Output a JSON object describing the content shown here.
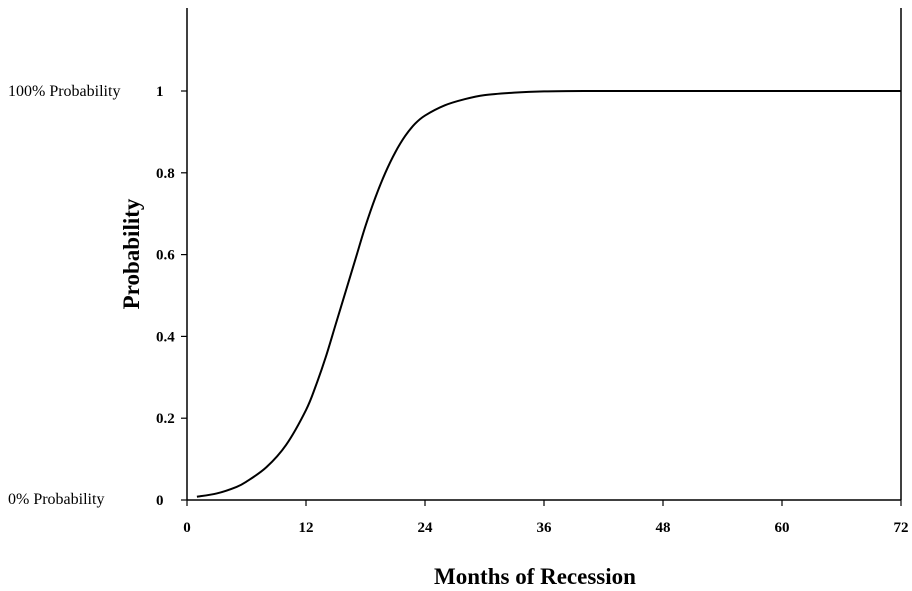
{
  "chart_data": {
    "type": "line",
    "title": "",
    "xlabel": "Months of Recession",
    "ylabel": "Probability",
    "xlim": [
      0,
      72
    ],
    "ylim": [
      0,
      1.2
    ],
    "xticks": [
      0,
      12,
      24,
      36,
      48,
      60,
      72
    ],
    "yticks": [
      0,
      0.2,
      0.4,
      0.6,
      0.8,
      1
    ],
    "ytick_labels": [
      "0",
      "0.2",
      "0.4",
      "0.6",
      "0.8",
      "1"
    ],
    "side_labels": {
      "top": "100% Probability",
      "bottom": "0% Probability"
    },
    "grid": false,
    "legend": "none",
    "series": [
      {
        "color": "#000000",
        "x": [
          1,
          3,
          5,
          6,
          8,
          10,
          12,
          13,
          14,
          15,
          16,
          17,
          18,
          19,
          20,
          21,
          22,
          23,
          24,
          26,
          28,
          30,
          33,
          36,
          40,
          48,
          60,
          72
        ],
        "y": [
          0.008,
          0.016,
          0.032,
          0.045,
          0.08,
          0.135,
          0.22,
          0.28,
          0.35,
          0.43,
          0.51,
          0.59,
          0.67,
          0.74,
          0.8,
          0.85,
          0.89,
          0.92,
          0.94,
          0.965,
          0.98,
          0.99,
          0.996,
          0.999,
          1.0,
          1.0,
          1.0,
          1.0
        ]
      }
    ]
  }
}
